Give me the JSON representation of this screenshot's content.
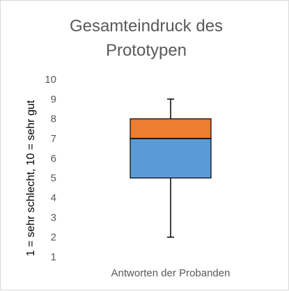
{
  "chart_data": {
    "type": "box",
    "title_lines": [
      "Gesamteindruck des",
      "Prototypen"
    ],
    "ylabel": "1 = sehr schlecht, 10 = sehr gut",
    "categories": [
      "Antworten der Probanden"
    ],
    "ylim": [
      1,
      10
    ],
    "yticks": [
      "1",
      "2",
      "3",
      "4",
      "5",
      "6",
      "7",
      "8",
      "9",
      "10"
    ],
    "grid": false,
    "legend": "none",
    "box": {
      "min": 2,
      "q1": 5,
      "median": 7,
      "q3": 8,
      "max": 9
    },
    "colors": {
      "lower_box": "#5b9bd5",
      "upper_box": "#ed7d31",
      "outline": "#000000",
      "text": "#595959"
    }
  }
}
